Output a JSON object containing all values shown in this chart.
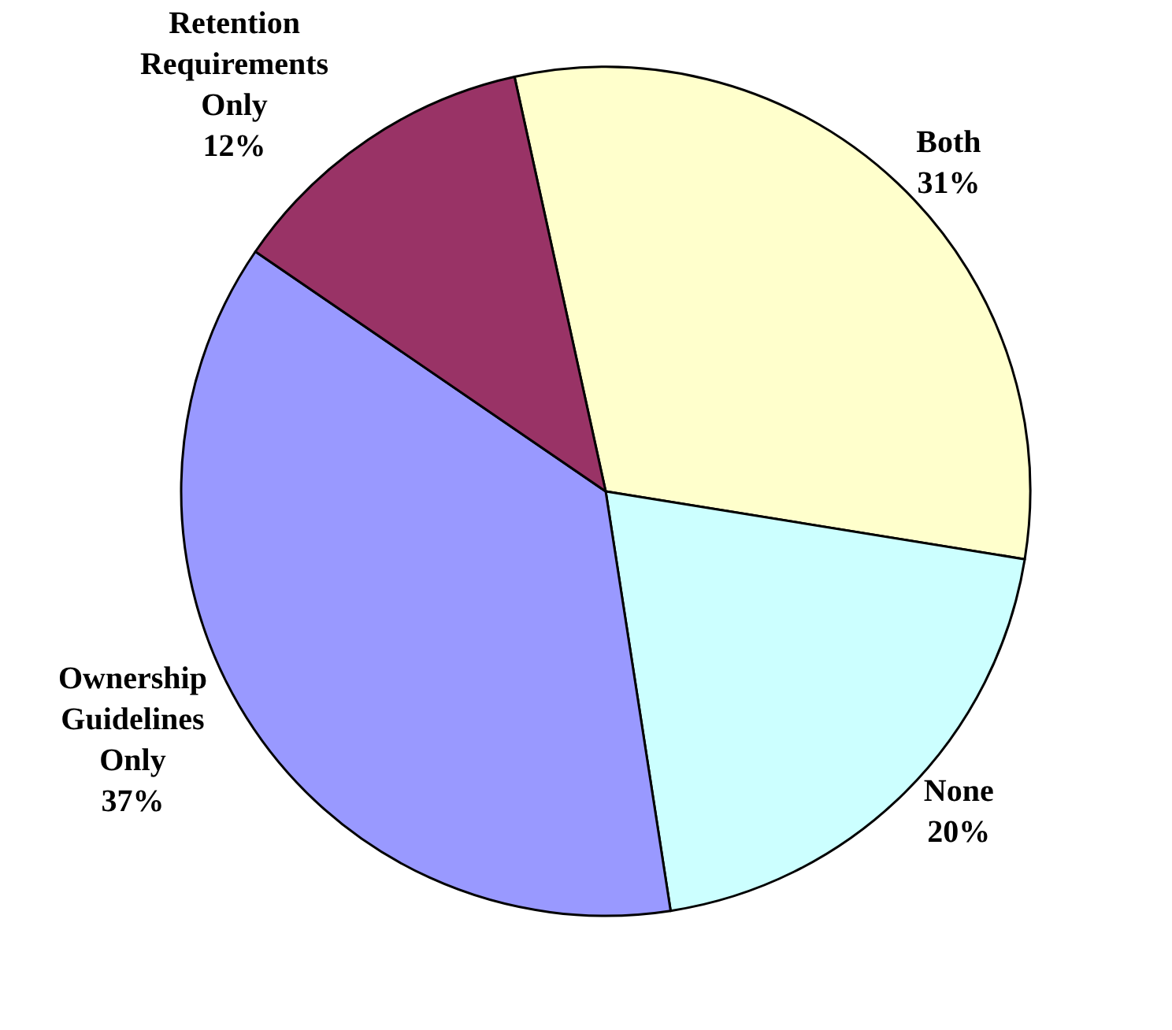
{
  "chart_data": {
    "type": "pie",
    "categories": [
      "Both",
      "None",
      "Ownership Guidelines Only",
      "Retention Requirements Only"
    ],
    "values": [
      31,
      20,
      37,
      12
    ],
    "value_labels": [
      "31%",
      "20%",
      "37%",
      "12%"
    ],
    "colors": [
      "#ffffcc",
      "#ccffff",
      "#9999ff",
      "#993366"
    ],
    "legend": false
  }
}
